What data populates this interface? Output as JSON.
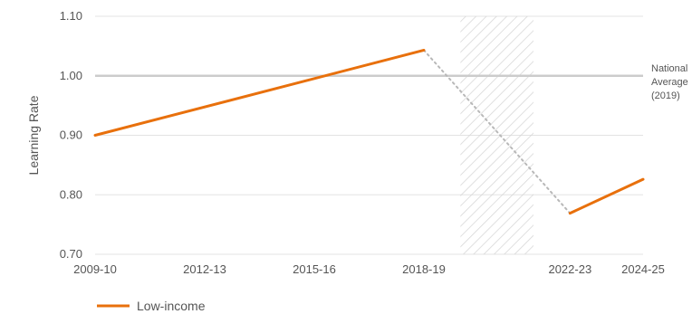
{
  "chart_data": {
    "type": "line",
    "ylabel": "Learning Rate",
    "ylim": [
      0.7,
      1.1
    ],
    "y_ticks": [
      "0.70",
      "0.80",
      "0.90",
      "1.00",
      "1.10"
    ],
    "x_ticks": [
      "2009-10",
      "2012-13",
      "2015-16",
      "2018-19",
      "2022-23",
      "2024-25"
    ],
    "grid": true,
    "series": [
      {
        "name": "Low-income",
        "color": "#e8700c",
        "segments": [
          [
            {
              "x": "2009-10",
              "y": 0.9
            },
            {
              "x": "2018-19",
              "y": 1.043
            }
          ],
          [
            {
              "x": "2022-23",
              "y": 0.769
            },
            {
              "x": "2024-25",
              "y": 0.826
            }
          ]
        ],
        "gap_connector": [
          {
            "x": "2018-19",
            "y": 1.043
          },
          {
            "x": "2022-23",
            "y": 0.769
          }
        ]
      }
    ],
    "reference_line": {
      "y": 1.0,
      "label_lines": [
        "National",
        "Average",
        "(2019)"
      ],
      "color": "#cccccc"
    },
    "shaded_region": {
      "x_start": "2019-20",
      "x_end": "2021-22",
      "pattern": "diagonal-hatch"
    },
    "legend": {
      "placement": "bottom-left",
      "entries": [
        "Low-income"
      ]
    }
  }
}
